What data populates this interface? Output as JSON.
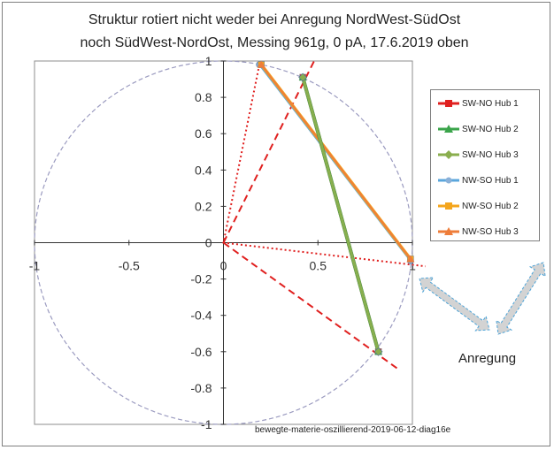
{
  "title_line1": "Struktur rotiert nicht weder bei Anregung  NordWest-SüdOst",
  "title_line2": "noch SüdWest-NordOst, Messing 961g,  0 pA,  17.6.2019 oben",
  "footer": "bewegte-materie-oszillierend-2019-06-12-diag16e",
  "excitation_label": "Anregung",
  "colors": {
    "sw_no_1": "#e0201f",
    "sw_no_2": "#3aa44a",
    "sw_no_3": "#8aae4e",
    "nw_so_1": "#5aa6dc",
    "nw_so_2": "#f4a51c",
    "nw_so_3": "#ee7d3a",
    "reference": "#e0201f",
    "circle": "#9b9bc0",
    "arrow_fill": "#d3d3d3",
    "arrow_stroke": "#4ba3d8"
  },
  "chart_data": {
    "type": "scatter",
    "xlim": [
      -1,
      1
    ],
    "ylim": [
      -1,
      1
    ],
    "xticks": [
      "-1",
      "-0.5",
      "0",
      "0.5",
      "1"
    ],
    "yticks": [
      "1",
      "0.8",
      "0.6",
      "0.4",
      "0.2",
      "0",
      "-0.2",
      "-0.4",
      "-0.6",
      "-0.8",
      "-1"
    ],
    "grid": false,
    "legend_position": "right",
    "unit_circle": true,
    "series": [
      {
        "name": "SW-NO Hub 1",
        "marker": "square",
        "x": [
          0.42,
          0.82
        ],
        "y": [
          0.91,
          -0.6
        ]
      },
      {
        "name": "SW-NO Hub 2",
        "marker": "triangle",
        "x": [
          0.42,
          0.82
        ],
        "y": [
          0.91,
          -0.6
        ]
      },
      {
        "name": "SW-NO Hub 3",
        "marker": "diamond",
        "x": [
          0.42,
          0.82
        ],
        "y": [
          0.91,
          -0.6
        ]
      },
      {
        "name": "NW-SO Hub 1",
        "marker": "circle",
        "x": [
          0.19,
          0.99
        ],
        "y": [
          0.98,
          -0.1
        ]
      },
      {
        "name": "NW-SO Hub 2",
        "marker": "square",
        "x": [
          0.2,
          0.99
        ],
        "y": [
          0.98,
          -0.09
        ]
      },
      {
        "name": "NW-SO Hub 3",
        "marker": "triangle",
        "x": [
          0.2,
          0.99
        ],
        "y": [
          0.98,
          -0.09
        ]
      }
    ],
    "reference_lines": [
      {
        "style": "dashed",
        "x": [
          0,
          0.48
        ],
        "y": [
          0,
          1.0
        ]
      },
      {
        "style": "dashed",
        "x": [
          0,
          0.93
        ],
        "y": [
          0,
          -0.7
        ]
      },
      {
        "style": "dotted",
        "x": [
          0.19,
          0,
          1.07
        ],
        "y": [
          0.98,
          0,
          -0.13
        ]
      }
    ]
  }
}
